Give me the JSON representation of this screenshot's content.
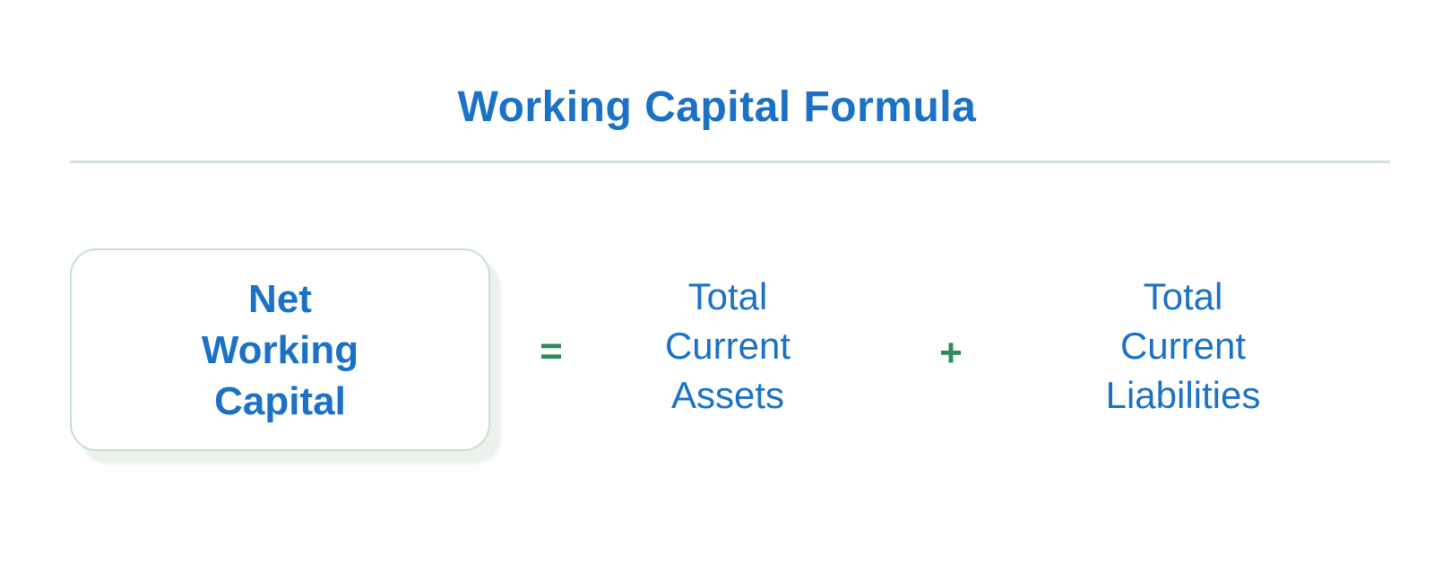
{
  "title": "Working Capital Formula",
  "formula": {
    "result": {
      "lines": [
        "Net",
        "Working",
        "Capital"
      ]
    },
    "operator_equals": "=",
    "operand_assets": {
      "lines": [
        "Total",
        "Current",
        "Assets"
      ]
    },
    "operator_plus": "+",
    "operand_liabilities": {
      "lines": [
        "Total",
        "Current",
        "Liabilities"
      ]
    }
  },
  "colors": {
    "text_blue": "#1B71C6",
    "operator_green": "#2F8B5B",
    "box_border": "#C9E0D0",
    "box_shadow": "#EBF1EC",
    "divider": "#D6E2DC",
    "background": "#FFFFFF"
  }
}
